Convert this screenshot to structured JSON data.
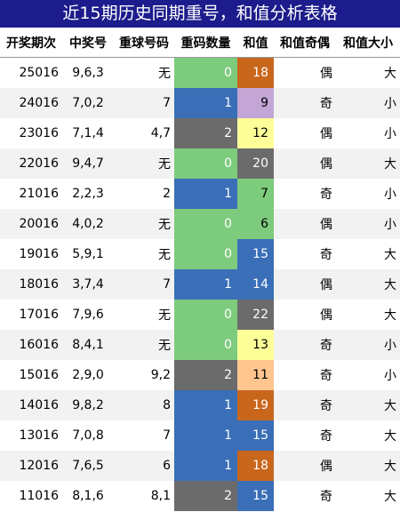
{
  "title": "近15期历史同期重号，和值分析表格",
  "headers": [
    "开奖期次",
    "中奖号",
    "重球号码",
    "重码数量",
    "和值",
    "和值奇偶",
    "和值大小"
  ],
  "count_colors": {
    "0": "#7dcb7d",
    "1": "#3a6fb7",
    "2": "#6b6b6b"
  },
  "sum_colors": {
    "6": "#7dcb7d",
    "7": "#7dcb7d",
    "9": "#c3a6d6",
    "11": "#ffc58e",
    "12": "#ffff99",
    "13": "#ffff99",
    "14": "#3a6fb7",
    "15": "#3a6fb7",
    "18": "#c8661c",
    "19": "#c8661c",
    "20": "#6b6b6b",
    "22": "#6b6b6b"
  },
  "rows": [
    {
      "issue": "25016",
      "numbers": "9,6,3",
      "repeat": "无",
      "count": "0",
      "sum": "18",
      "parity": "偶",
      "size": "大"
    },
    {
      "issue": "24016",
      "numbers": "7,0,2",
      "repeat": "7",
      "count": "1",
      "sum": "9",
      "parity": "奇",
      "size": "小"
    },
    {
      "issue": "23016",
      "numbers": "7,1,4",
      "repeat": "4,7",
      "count": "2",
      "sum": "12",
      "parity": "偶",
      "size": "小"
    },
    {
      "issue": "22016",
      "numbers": "9,4,7",
      "repeat": "无",
      "count": "0",
      "sum": "20",
      "parity": "偶",
      "size": "大"
    },
    {
      "issue": "21016",
      "numbers": "2,2,3",
      "repeat": "2",
      "count": "1",
      "sum": "7",
      "parity": "奇",
      "size": "小"
    },
    {
      "issue": "20016",
      "numbers": "4,0,2",
      "repeat": "无",
      "count": "0",
      "sum": "6",
      "parity": "偶",
      "size": "小"
    },
    {
      "issue": "19016",
      "numbers": "5,9,1",
      "repeat": "无",
      "count": "0",
      "sum": "15",
      "parity": "奇",
      "size": "大"
    },
    {
      "issue": "18016",
      "numbers": "3,7,4",
      "repeat": "7",
      "count": "1",
      "sum": "14",
      "parity": "偶",
      "size": "大"
    },
    {
      "issue": "17016",
      "numbers": "7,9,6",
      "repeat": "无",
      "count": "0",
      "sum": "22",
      "parity": "偶",
      "size": "大"
    },
    {
      "issue": "16016",
      "numbers": "8,4,1",
      "repeat": "无",
      "count": "0",
      "sum": "13",
      "parity": "奇",
      "size": "小"
    },
    {
      "issue": "15016",
      "numbers": "2,9,0",
      "repeat": "9,2",
      "count": "2",
      "sum": "11",
      "parity": "奇",
      "size": "小"
    },
    {
      "issue": "14016",
      "numbers": "9,8,2",
      "repeat": "8",
      "count": "1",
      "sum": "19",
      "parity": "奇",
      "size": "大"
    },
    {
      "issue": "13016",
      "numbers": "7,0,8",
      "repeat": "7",
      "count": "1",
      "sum": "15",
      "parity": "奇",
      "size": "大"
    },
    {
      "issue": "12016",
      "numbers": "7,6,5",
      "repeat": "6",
      "count": "1",
      "sum": "18",
      "parity": "偶",
      "size": "大"
    },
    {
      "issue": "11016",
      "numbers": "8,1,6",
      "repeat": "8,1",
      "count": "2",
      "sum": "15",
      "parity": "奇",
      "size": "大"
    }
  ]
}
